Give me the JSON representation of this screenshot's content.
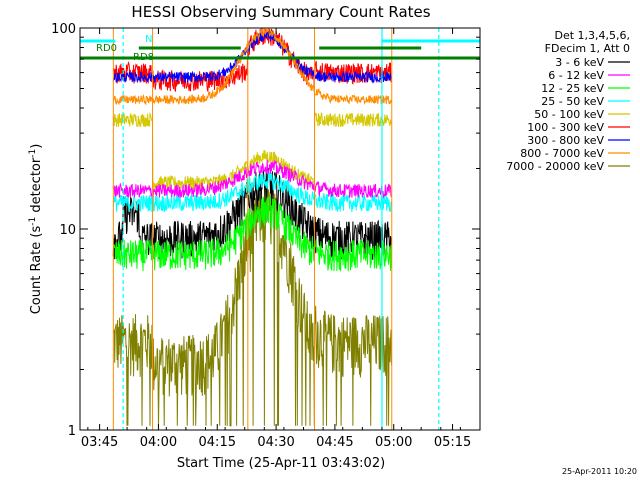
{
  "chart_data": {
    "type": "line",
    "title": "HESSI Observing Summary Count Rates",
    "xlabel": "Start Time (25-Apr-11 03:43:02)",
    "ylabel_prefix": "Count Rate (s",
    "ylabel_exp1": "-1",
    "ylabel_mid": " detector",
    "ylabel_exp2": "-1",
    "ylabel_suffix": ")",
    "x_range_min": [
      -3,
      79
    ],
    "y_range": [
      1,
      100
    ],
    "y_scale": "log",
    "x_ticks": [
      {
        "min": 2,
        "label": "03:45"
      },
      {
        "min": 17,
        "label": "04:00"
      },
      {
        "min": 32,
        "label": "04:15"
      },
      {
        "min": 47,
        "label": "04:30"
      },
      {
        "min": 62,
        "label": "04:45"
      },
      {
        "min": 77,
        "label": "05:00"
      },
      {
        "min": 92,
        "label": "05:15"
      }
    ],
    "y_ticks": [
      {
        "value": 1,
        "label": "1"
      },
      {
        "value": 10,
        "label": "10"
      },
      {
        "value": 100,
        "label": "100"
      }
    ],
    "legend": {
      "placement": "right",
      "header": [
        "Det 1,3,4,5,6,",
        "FDecim 1, Att 0"
      ]
    },
    "series": [
      {
        "name": "3 - 6 keV",
        "color": "#000000"
      },
      {
        "name": "6 - 12 keV",
        "color": "#ff00ff"
      },
      {
        "name": "12 - 25 keV",
        "color": "#00ff00"
      },
      {
        "name": "25 - 50 keV",
        "color": "#00ffff"
      },
      {
        "name": "50 - 100 keV",
        "color": "#d4c800"
      },
      {
        "name": "100 - 300 keV",
        "color": "#ff0000"
      },
      {
        "name": "300 - 800 keV",
        "color": "#0000ff"
      },
      {
        "name": "800 - 7000 keV",
        "color": "#ff8c00"
      },
      {
        "name": "7000 - 20000 keV",
        "color": "#808000"
      }
    ],
    "annotations": [
      {
        "label": "RD0",
        "color": "#008000"
      },
      {
        "label": "RD8",
        "color": "#008000"
      },
      {
        "label": "N",
        "color": "#00ffff"
      }
    ],
    "footer_timestamp": "25-Apr-2011 10:20"
  }
}
